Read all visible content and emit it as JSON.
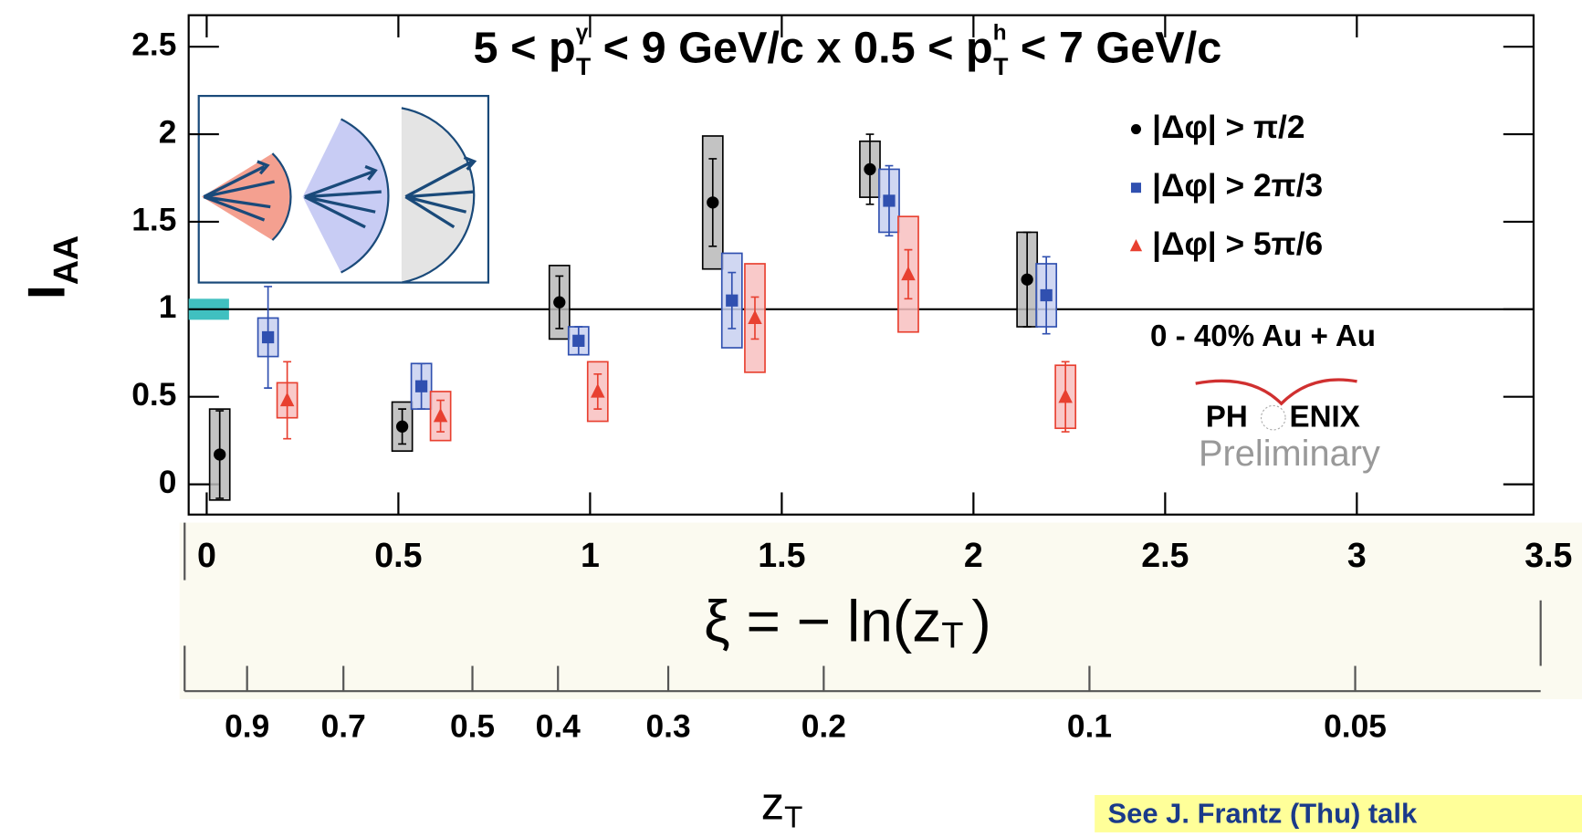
{
  "chart_data": {
    "type": "scatter",
    "title": [
      "5 < p",
      "γ",
      "T",
      " < 9 GeV/c x 0.5 < p",
      "h",
      "T",
      " < 7 GeV/c"
    ],
    "ylabel": [
      "I",
      "AA"
    ],
    "xlabel": [
      "ξ =  − ln(z",
      "T",
      ")"
    ],
    "x2label": [
      "z",
      "T"
    ],
    "xlim": [
      -0.047,
      3.461
    ],
    "ylim": [
      -0.173,
      2.68
    ],
    "xticks": [
      0,
      0.5,
      1,
      1.5,
      2,
      2.5,
      3,
      3.5
    ],
    "yticks": [
      0,
      0.5,
      1,
      1.5,
      2,
      2.5
    ],
    "x2ticks": [
      0.9,
      0.7,
      0.5,
      0.4,
      0.3,
      0.2,
      0.1,
      0.05
    ],
    "reference_line": 1,
    "norm_uncertainty": {
      "value": 1,
      "error": 0.06,
      "color": "#40c0c0"
    },
    "series": [
      {
        "name": "|Δφ| > π/2",
        "color": "#000000",
        "box_color": "#b8b8b8",
        "marker": "circle",
        "x": [
          0.034,
          0.51,
          0.92,
          1.32,
          1.73,
          2.14
        ],
        "values": [
          0.17,
          0.33,
          1.04,
          1.61,
          1.8,
          1.17
        ],
        "errors": [
          0.25,
          0.1,
          0.15,
          0.25,
          0.2,
          0.27
        ],
        "sys": [
          0.26,
          0.14,
          0.21,
          0.38,
          0.16,
          0.27
        ]
      },
      {
        "name": "|Δφ| > 2π/3",
        "color": "#3050b0",
        "box_color": "#c8d0f0",
        "marker": "square",
        "x": [
          0.16,
          0.56,
          0.97,
          1.37,
          1.78,
          2.19
        ],
        "values": [
          0.84,
          0.56,
          0.82,
          1.05,
          1.62,
          1.08
        ],
        "errors": [
          0.29,
          0.13,
          0.08,
          0.16,
          0.2,
          0.22
        ],
        "sys": [
          0.11,
          0.13,
          0.08,
          0.27,
          0.18,
          0.18
        ]
      },
      {
        "name": "|Δφ| > 5π/6",
        "color": "#e84030",
        "box_color": "#f8c0c0",
        "marker": "triangle",
        "x": [
          0.21,
          0.61,
          1.02,
          1.43,
          1.83,
          2.24
        ],
        "values": [
          0.48,
          0.39,
          0.53,
          0.95,
          1.2,
          0.5
        ],
        "errors": [
          0.22,
          0.09,
          0.1,
          0.12,
          0.14,
          0.2
        ],
        "sys": [
          0.1,
          0.14,
          0.17,
          0.31,
          0.33,
          0.18
        ]
      }
    ],
    "annotations": [
      "0 - 40% Au + Au",
      "PH",
      "ENIX",
      "Preliminary",
      "See J. Frantz (Thu) talk"
    ]
  }
}
